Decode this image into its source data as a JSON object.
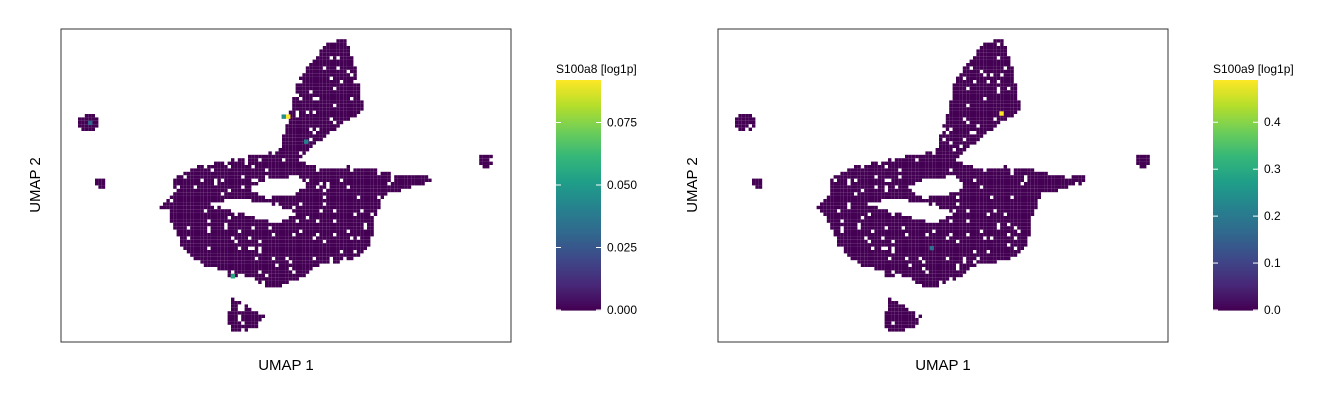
{
  "colors": {
    "viridis": [
      "#440154",
      "#482878",
      "#3e4989",
      "#31688e",
      "#26828e",
      "#1f9e89",
      "#35b779",
      "#6ece58",
      "#b5de2b",
      "#fde725"
    ],
    "background_cell": "#440154"
  },
  "chart_data": [
    {
      "type": "scatter",
      "xlabel": "UMAP 1",
      "ylabel": "UMAP 2",
      "colorbar": {
        "title": "S100a8 [log1p]",
        "range": [
          0,
          0.092
        ],
        "ticks": [
          0.0,
          0.025,
          0.05,
          0.075
        ],
        "tick_labels": [
          "0.000",
          "0.025",
          "0.050",
          "0.075"
        ]
      },
      "highlights": [
        {
          "x": 0.505,
          "y": 0.72,
          "value": 0.092
        },
        {
          "x": 0.495,
          "y": 0.72,
          "value": 0.045
        },
        {
          "x": 0.545,
          "y": 0.64,
          "value": 0.04
        },
        {
          "x": 0.382,
          "y": 0.21,
          "value": 0.055
        },
        {
          "x": 0.065,
          "y": 0.7,
          "value": 0.03
        }
      ]
    },
    {
      "type": "scatter",
      "xlabel": "UMAP 1",
      "ylabel": "UMAP 2",
      "colorbar": {
        "title": "S100a9 [log1p]",
        "range": [
          0,
          0.49
        ],
        "ticks": [
          0.0,
          0.1,
          0.2,
          0.3,
          0.4
        ],
        "tick_labels": [
          "0.0",
          "0.1",
          "0.2",
          "0.3",
          "0.4"
        ]
      },
      "highlights": [
        {
          "x": 0.63,
          "y": 0.73,
          "value": 0.49
        },
        {
          "x": 0.475,
          "y": 0.3,
          "value": 0.18
        }
      ]
    }
  ]
}
